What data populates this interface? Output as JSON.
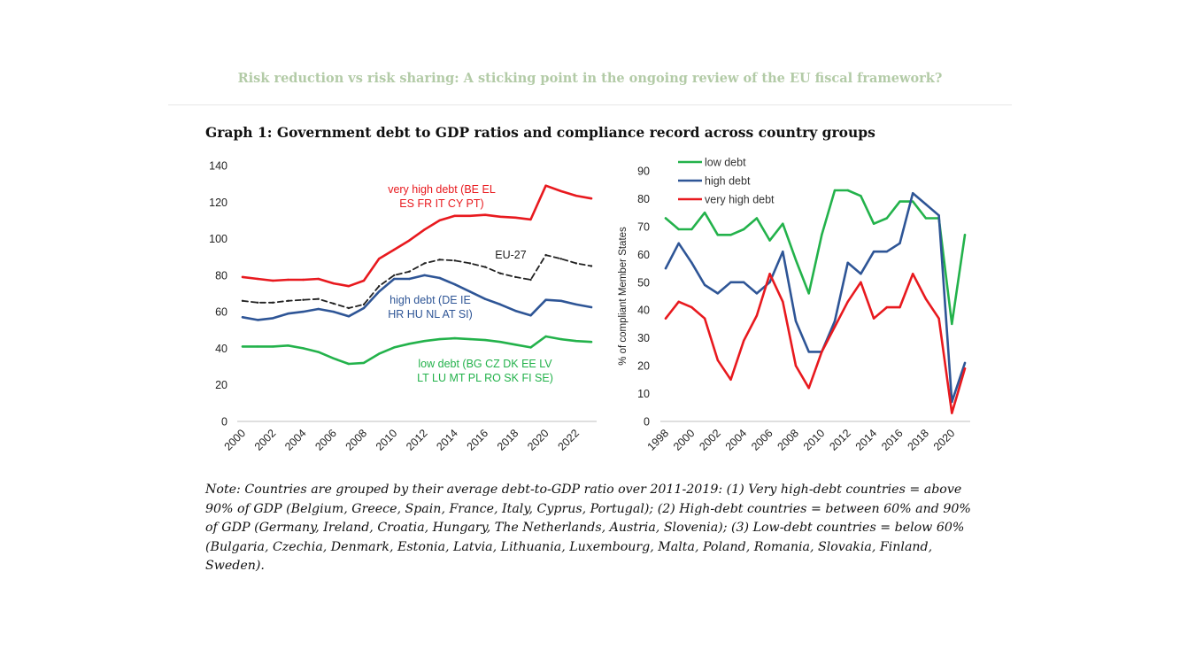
{
  "header": {
    "title": "Risk reduction vs risk sharing: A sticking point in the ongoing review of the EU fiscal framework?"
  },
  "graph_title": "Graph 1: Government debt to GDP ratios and compliance record across country groups",
  "note": "Note: Countries are grouped by their average debt-to-GDP ratio over 2011-2019: (1) Very high-debt countries = above 90% of GDP (Belgium, Greece, Spain, France, Italy, Cyprus, Portugal); (2) High-debt countries = between 60% and 90% of GDP (Germany, Ireland, Croatia, Hungary, The Netherlands, Austria, Slovenia); (3) Low-debt countries = below 60% (Bulgaria, Czechia, Denmark, Estonia, Latvia, Lithuania, Luxembourg, Malta, Poland, Romania, Slovakia, Finland, Sweden).",
  "colors": {
    "very_high": "#e8191e",
    "high": "#2e5596",
    "low": "#23b24b",
    "eu27": "#222222"
  },
  "chart_data": [
    {
      "type": "line",
      "title": "Government debt to GDP ratio",
      "xlabel": "",
      "ylabel": "",
      "x": [
        2000,
        2001,
        2002,
        2003,
        2004,
        2005,
        2006,
        2007,
        2008,
        2009,
        2010,
        2011,
        2012,
        2013,
        2014,
        2015,
        2016,
        2017,
        2018,
        2019,
        2020,
        2021,
        2022,
        2023
      ],
      "xticks": [
        "2000",
        "2002",
        "2004",
        "2006",
        "2008",
        "2010",
        "2012",
        "2014",
        "2016",
        "2018",
        "2020",
        "2022"
      ],
      "yticks": [
        "0",
        "20",
        "40",
        "60",
        "80",
        "100",
        "120",
        "140"
      ],
      "ylim": [
        0,
        140
      ],
      "grid": false,
      "series": [
        {
          "name": "very high debt",
          "label_lines": [
            "very high debt (BE EL",
            "ES FR IT CY PT)"
          ],
          "color_key": "very_high",
          "dashed": false,
          "values": [
            79,
            78,
            77,
            77.5,
            77.5,
            78,
            75.5,
            74,
            77,
            89,
            94,
            99,
            105,
            110,
            112.5,
            112.5,
            113,
            112,
            111.5,
            110.5,
            129,
            126,
            123.5,
            122
          ]
        },
        {
          "name": "EU-27",
          "label_lines": [
            "EU-27"
          ],
          "color_key": "eu27",
          "dashed": true,
          "values": [
            66,
            65,
            65,
            66,
            66.5,
            67,
            64.5,
            62,
            64,
            74,
            80,
            82,
            86.5,
            88.5,
            88,
            86.5,
            84.5,
            81,
            79,
            77.5,
            91,
            89,
            86.5,
            85
          ]
        },
        {
          "name": "high debt",
          "label_lines": [
            "high debt (DE IE",
            "HR HU NL AT SI)"
          ],
          "color_key": "high",
          "dashed": false,
          "values": [
            57,
            55.5,
            56.5,
            59,
            60,
            61.5,
            60,
            57.5,
            62,
            71,
            78,
            78,
            80,
            78.5,
            75,
            71,
            67,
            64,
            60.5,
            58,
            66.5,
            66,
            64,
            62.5
          ]
        },
        {
          "name": "low debt",
          "label_lines": [
            "low debt (BG CZ DK EE LV",
            "LT LU MT PL RO SK FI SE)"
          ],
          "color_key": "low",
          "dashed": false,
          "values": [
            41,
            41,
            41,
            41.5,
            40,
            38,
            34.5,
            31.5,
            32,
            37,
            40.5,
            42.5,
            44,
            45,
            45.5,
            45,
            44.5,
            43.5,
            42,
            40.5,
            46.5,
            45,
            44,
            43.5
          ]
        }
      ]
    },
    {
      "type": "line",
      "title": "Compliance record",
      "xlabel": "",
      "ylabel": "% of compliant Member States",
      "x": [
        1998,
        1999,
        2000,
        2001,
        2002,
        2003,
        2004,
        2005,
        2006,
        2007,
        2008,
        2009,
        2010,
        2011,
        2012,
        2013,
        2014,
        2015,
        2016,
        2017,
        2018,
        2019,
        2020,
        2021
      ],
      "xticks": [
        "1998",
        "2000",
        "2002",
        "2004",
        "2006",
        "2008",
        "2010",
        "2012",
        "2014",
        "2016",
        "2018",
        "2020"
      ],
      "yticks": [
        "0",
        "10",
        "20",
        "30",
        "40",
        "50",
        "60",
        "70",
        "80",
        "90"
      ],
      "ylim": [
        0,
        90
      ],
      "grid": false,
      "legend": [
        "low debt",
        "high debt",
        "very high debt"
      ],
      "legend_position": "top-left",
      "series": [
        {
          "name": "low debt",
          "color_key": "low",
          "values": [
            73,
            69,
            69,
            75,
            67,
            67,
            69,
            73,
            65,
            71,
            58,
            46,
            67,
            83,
            83,
            81,
            71,
            73,
            79,
            79,
            73,
            73,
            35,
            67
          ]
        },
        {
          "name": "high debt",
          "color_key": "high",
          "values": [
            55,
            64,
            57,
            49,
            46,
            50,
            50,
            46,
            50,
            61,
            36,
            25,
            25,
            36,
            57,
            53,
            61,
            61,
            64,
            82,
            78,
            74,
            7,
            21
          ]
        },
        {
          "name": "very high debt",
          "color_key": "very_high",
          "values": [
            37,
            43,
            41,
            37,
            22,
            15,
            29,
            38,
            53,
            43,
            20,
            12,
            25,
            34,
            43,
            50,
            37,
            41,
            41,
            53,
            44,
            37,
            3,
            19
          ]
        }
      ]
    }
  ]
}
